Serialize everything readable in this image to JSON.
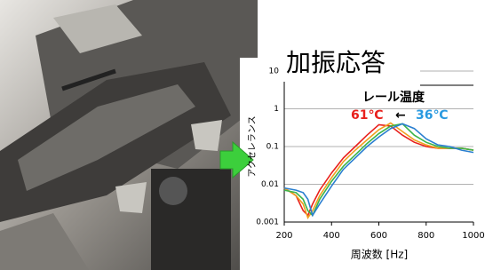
{
  "chart_data": {
    "type": "line",
    "title": "加振応答",
    "x_label": "周波数 [Hz]",
    "y_label": "アクセレランス",
    "x": [
      200,
      250,
      280,
      300,
      320,
      350,
      400,
      450,
      500,
      550,
      600,
      650,
      700,
      750,
      800,
      850,
      900,
      950,
      1000
    ],
    "series": [
      {
        "color": "#e8201c",
        "values": [
          0.008,
          0.005,
          0.002,
          0.0015,
          0.003,
          0.007,
          0.02,
          0.05,
          0.1,
          0.2,
          0.38,
          0.35,
          0.2,
          0.13,
          0.1,
          0.09,
          0.09,
          0.09,
          0.08
        ]
      },
      {
        "color": "#f0a020",
        "values": [
          0.008,
          0.005,
          0.003,
          0.0013,
          0.002,
          0.005,
          0.015,
          0.04,
          0.08,
          0.15,
          0.28,
          0.42,
          0.25,
          0.15,
          0.11,
          0.09,
          0.09,
          0.09,
          0.08
        ]
      },
      {
        "color": "#3cb44a",
        "values": [
          0.007,
          0.006,
          0.004,
          0.002,
          0.0015,
          0.004,
          0.012,
          0.03,
          0.06,
          0.12,
          0.22,
          0.35,
          0.4,
          0.2,
          0.13,
          0.1,
          0.09,
          0.09,
          0.08
        ]
      },
      {
        "color": "#2a7fd0",
        "values": [
          0.008,
          0.007,
          0.006,
          0.004,
          0.0015,
          0.003,
          0.009,
          0.025,
          0.05,
          0.1,
          0.18,
          0.3,
          0.4,
          0.3,
          0.16,
          0.11,
          0.1,
          0.08,
          0.07
        ]
      }
    ],
    "xlim": [
      200,
      1000
    ],
    "xticks": [
      200,
      400,
      600,
      800,
      1000
    ],
    "ylim": [
      0.001,
      10
    ],
    "yticks": [
      0.001,
      0.01,
      0.1,
      1,
      10
    ],
    "log_y": true,
    "grid": true,
    "annotations": [
      {
        "text": "レール温度",
        "color": "#000000"
      },
      {
        "text": "61℃",
        "color": "#e8201c"
      },
      {
        "text": "←",
        "color": "#000000"
      },
      {
        "text": "36℃",
        "color": "#2a9ae0"
      }
    ]
  }
}
